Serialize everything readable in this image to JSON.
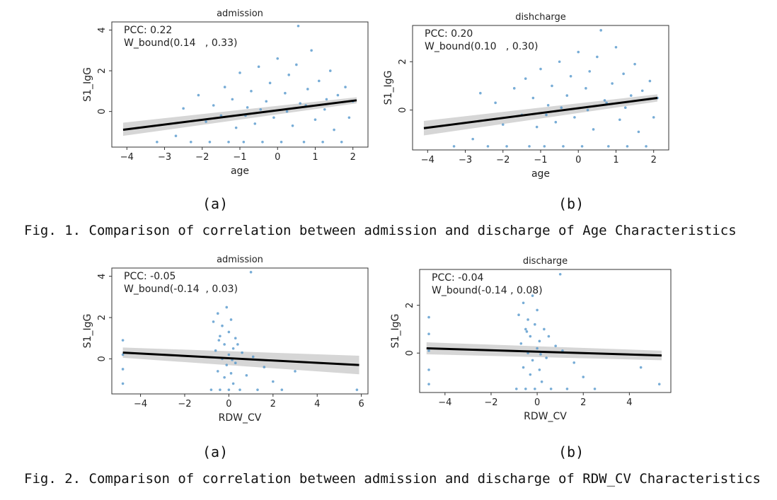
{
  "figures": [
    {
      "caption": "Fig. 1. Comparison of correlation between admission and discharge of Age Characteristics",
      "sublabels": [
        "(a)",
        "(b)"
      ]
    },
    {
      "caption": "Fig. 2. Comparison of correlation between admission and discharge of RDW_CV Characteristics",
      "sublabels": [
        "(a)",
        "(b)"
      ]
    }
  ],
  "chart_data": [
    {
      "type": "scatter",
      "title": "admission",
      "xlabel": "age",
      "ylabel": "S1_IgG",
      "xlim": [
        -4.4,
        2.4
      ],
      "ylim": [
        -1.75,
        4.4
      ],
      "xticks": [
        -4,
        -3,
        -2,
        -1,
        0,
        1,
        2
      ],
      "yticks": [
        0,
        2,
        4
      ],
      "annotations": [
        "PCC: 0.22",
        "W_bound(0.14   , 0.33)"
      ],
      "regression": {
        "x": [
          -4.1,
          2.1
        ],
        "y": [
          -0.9,
          0.55
        ]
      },
      "ci_band": {
        "x": [
          -4.1,
          2.1
        ],
        "upper": [
          -0.55,
          0.7
        ],
        "lower": [
          -1.2,
          0.4
        ]
      },
      "points": [
        [
          -3.2,
          -1.5
        ],
        [
          -2.7,
          -1.2
        ],
        [
          -2.5,
          0.15
        ],
        [
          -2.3,
          -1.5
        ],
        [
          -2.1,
          0.8
        ],
        [
          -1.9,
          -0.5
        ],
        [
          -1.8,
          -1.5
        ],
        [
          -1.7,
          0.3
        ],
        [
          -1.5,
          -0.2
        ],
        [
          -1.4,
          1.2
        ],
        [
          -1.3,
          -1.5
        ],
        [
          -1.2,
          0.6
        ],
        [
          -1.1,
          -0.8
        ],
        [
          -1.0,
          1.9
        ],
        [
          -0.9,
          -1.5
        ],
        [
          -0.8,
          0.2
        ],
        [
          -0.7,
          1.0
        ],
        [
          -0.6,
          -0.6
        ],
        [
          -0.5,
          2.2
        ],
        [
          -0.4,
          -1.5
        ],
        [
          -0.3,
          0.5
        ],
        [
          -0.2,
          1.4
        ],
        [
          -0.1,
          -0.3
        ],
        [
          0.0,
          2.6
        ],
        [
          0.1,
          -1.5
        ],
        [
          0.2,
          0.9
        ],
        [
          0.3,
          1.8
        ],
        [
          0.4,
          -0.7
        ],
        [
          0.5,
          2.3
        ],
        [
          0.55,
          4.2
        ],
        [
          0.6,
          0.4
        ],
        [
          0.7,
          -1.5
        ],
        [
          0.8,
          1.1
        ],
        [
          0.9,
          3.0
        ],
        [
          1.0,
          -0.4
        ],
        [
          1.1,
          1.5
        ],
        [
          1.2,
          -1.5
        ],
        [
          1.3,
          0.6
        ],
        [
          1.4,
          2.0
        ],
        [
          1.5,
          -0.9
        ],
        [
          1.6,
          0.8
        ],
        [
          1.7,
          -1.5
        ],
        [
          1.8,
          1.2
        ],
        [
          1.9,
          -0.3
        ],
        [
          2.0,
          0.5
        ],
        [
          -0.45,
          0.1
        ],
        [
          0.25,
          0.0
        ],
        [
          0.75,
          0.3
        ],
        [
          -0.85,
          -0.2
        ],
        [
          1.25,
          0.1
        ]
      ]
    },
    {
      "type": "scatter",
      "title": "dishcharge",
      "xlabel": "age",
      "ylabel": "S1_IgG",
      "xlim": [
        -4.4,
        2.4
      ],
      "ylim": [
        -1.65,
        3.5
      ],
      "xticks": [
        -4,
        -3,
        -2,
        -1,
        0,
        1,
        2
      ],
      "yticks": [
        0,
        2
      ],
      "annotations": [
        "PCC: 0.20",
        "W_bound(0.10   , 0.30)"
      ],
      "regression": {
        "x": [
          -4.1,
          2.1
        ],
        "y": [
          -0.75,
          0.5
        ]
      },
      "ci_band": {
        "x": [
          -4.1,
          2.1
        ],
        "upper": [
          -0.45,
          0.65
        ],
        "lower": [
          -1.05,
          0.35
        ]
      },
      "points": [
        [
          -3.3,
          -1.5
        ],
        [
          -2.8,
          -1.2
        ],
        [
          -2.6,
          0.7
        ],
        [
          -2.4,
          -1.5
        ],
        [
          -2.2,
          0.3
        ],
        [
          -2.0,
          -0.6
        ],
        [
          -1.9,
          -1.5
        ],
        [
          -1.7,
          0.9
        ],
        [
          -1.5,
          -0.2
        ],
        [
          -1.4,
          1.3
        ],
        [
          -1.3,
          -1.5
        ],
        [
          -1.2,
          0.5
        ],
        [
          -1.1,
          -0.7
        ],
        [
          -1.0,
          1.7
        ],
        [
          -0.9,
          -1.5
        ],
        [
          -0.8,
          0.2
        ],
        [
          -0.7,
          1.0
        ],
        [
          -0.6,
          -0.5
        ],
        [
          -0.5,
          2.0
        ],
        [
          -0.4,
          -1.5
        ],
        [
          -0.3,
          0.6
        ],
        [
          -0.2,
          1.4
        ],
        [
          -0.1,
          -0.3
        ],
        [
          0.0,
          2.4
        ],
        [
          0.1,
          -1.5
        ],
        [
          0.2,
          0.9
        ],
        [
          0.3,
          1.6
        ],
        [
          0.4,
          -0.8
        ],
        [
          0.5,
          2.2
        ],
        [
          0.6,
          3.3
        ],
        [
          0.7,
          0.4
        ],
        [
          0.8,
          -1.5
        ],
        [
          0.9,
          1.1
        ],
        [
          1.0,
          2.6
        ],
        [
          1.1,
          -0.4
        ],
        [
          1.2,
          1.5
        ],
        [
          1.3,
          -1.5
        ],
        [
          1.4,
          0.6
        ],
        [
          1.5,
          1.9
        ],
        [
          1.6,
          -0.9
        ],
        [
          1.7,
          0.8
        ],
        [
          1.8,
          -1.5
        ],
        [
          1.9,
          1.2
        ],
        [
          2.0,
          -0.3
        ],
        [
          2.1,
          0.5
        ],
        [
          -0.45,
          0.1
        ],
        [
          0.25,
          0.0
        ],
        [
          0.75,
          0.3
        ],
        [
          -0.85,
          -0.2
        ],
        [
          1.25,
          0.1
        ]
      ]
    },
    {
      "type": "scatter",
      "title": "admission",
      "xlabel": "RDW_CV",
      "ylabel": "S1_IgG",
      "xlim": [
        -5.3,
        6.3
      ],
      "ylim": [
        -1.7,
        4.4
      ],
      "xticks": [
        -4,
        -2,
        0,
        2,
        4,
        6
      ],
      "yticks": [
        0,
        2,
        4
      ],
      "annotations": [
        "PCC: -0.05",
        "W_bound(-0.14  , 0.03)"
      ],
      "regression": {
        "x": [
          -4.8,
          5.9
        ],
        "y": [
          0.3,
          -0.3
        ]
      },
      "ci_band": {
        "x": [
          -4.8,
          5.9
        ],
        "upper": [
          0.55,
          0.15
        ],
        "lower": [
          0.05,
          -0.75
        ]
      },
      "points": [
        [
          -4.8,
          0.9
        ],
        [
          -4.8,
          0.2
        ],
        [
          -4.8,
          -0.5
        ],
        [
          -4.8,
          -1.2
        ],
        [
          -0.8,
          -1.5
        ],
        [
          -0.7,
          1.8
        ],
        [
          -0.6,
          0.4
        ],
        [
          -0.5,
          -0.6
        ],
        [
          -0.5,
          2.2
        ],
        [
          -0.4,
          1.1
        ],
        [
          -0.4,
          -1.5
        ],
        [
          -0.3,
          0.0
        ],
        [
          -0.3,
          1.6
        ],
        [
          -0.2,
          -0.9
        ],
        [
          -0.2,
          0.7
        ],
        [
          -0.1,
          2.5
        ],
        [
          -0.1,
          -0.3
        ],
        [
          0.0,
          1.3
        ],
        [
          0.0,
          -1.5
        ],
        [
          0.0,
          0.2
        ],
        [
          0.1,
          1.9
        ],
        [
          0.1,
          -0.7
        ],
        [
          0.2,
          0.5
        ],
        [
          0.2,
          -1.2
        ],
        [
          0.3,
          1.0
        ],
        [
          0.3,
          -0.2
        ],
        [
          0.4,
          0.7
        ],
        [
          0.5,
          -1.5
        ],
        [
          0.6,
          0.3
        ],
        [
          0.8,
          -0.8
        ],
        [
          1.0,
          4.2
        ],
        [
          1.1,
          0.1
        ],
        [
          1.3,
          -1.5
        ],
        [
          1.6,
          -0.4
        ],
        [
          2.0,
          -1.1
        ],
        [
          2.4,
          -1.5
        ],
        [
          3.0,
          -0.6
        ],
        [
          5.8,
          -1.5
        ],
        [
          -0.45,
          0.9
        ],
        [
          0.15,
          -0.05
        ]
      ]
    },
    {
      "type": "scatter",
      "title": "discharge",
      "xlabel": "RDW_CV",
      "ylabel": "S1_IgG",
      "xlim": [
        -5.1,
        5.8
      ],
      "ylim": [
        -1.65,
        3.5
      ],
      "xticks": [
        -4,
        -2,
        0,
        2,
        4
      ],
      "yticks": [
        0,
        2
      ],
      "annotations": [
        "PCC: -0.04",
        "W_bound(-0.14 , 0.08)"
      ],
      "regression": {
        "x": [
          -4.8,
          5.4
        ],
        "y": [
          0.2,
          -0.1
        ]
      },
      "ci_band": {
        "x": [
          -4.8,
          5.4
        ],
        "upper": [
          0.45,
          0.1
        ],
        "lower": [
          -0.05,
          -0.3
        ]
      },
      "points": [
        [
          -4.7,
          1.5
        ],
        [
          -4.7,
          0.8
        ],
        [
          -4.7,
          0.1
        ],
        [
          -4.7,
          -0.7
        ],
        [
          -4.7,
          -1.3
        ],
        [
          -0.9,
          -1.5
        ],
        [
          -0.8,
          1.6
        ],
        [
          -0.7,
          0.4
        ],
        [
          -0.6,
          -0.6
        ],
        [
          -0.6,
          2.1
        ],
        [
          -0.5,
          1.0
        ],
        [
          -0.5,
          -1.5
        ],
        [
          -0.4,
          0.0
        ],
        [
          -0.4,
          1.4
        ],
        [
          -0.3,
          -0.9
        ],
        [
          -0.3,
          0.7
        ],
        [
          -0.2,
          2.4
        ],
        [
          -0.2,
          -0.3
        ],
        [
          -0.1,
          1.2
        ],
        [
          -0.1,
          -1.5
        ],
        [
          0.0,
          0.2
        ],
        [
          0.0,
          1.8
        ],
        [
          0.1,
          -0.7
        ],
        [
          0.1,
          0.5
        ],
        [
          0.2,
          -1.2
        ],
        [
          0.3,
          1.0
        ],
        [
          0.4,
          -0.2
        ],
        [
          0.5,
          0.7
        ],
        [
          0.6,
          -1.5
        ],
        [
          0.8,
          0.3
        ],
        [
          1.0,
          3.3
        ],
        [
          1.1,
          0.1
        ],
        [
          1.3,
          -1.5
        ],
        [
          1.6,
          -0.4
        ],
        [
          2.0,
          -1.0
        ],
        [
          2.5,
          -1.5
        ],
        [
          4.5,
          -0.6
        ],
        [
          5.3,
          -1.3
        ],
        [
          -0.45,
          0.9
        ],
        [
          0.15,
          -0.05
        ]
      ]
    }
  ]
}
